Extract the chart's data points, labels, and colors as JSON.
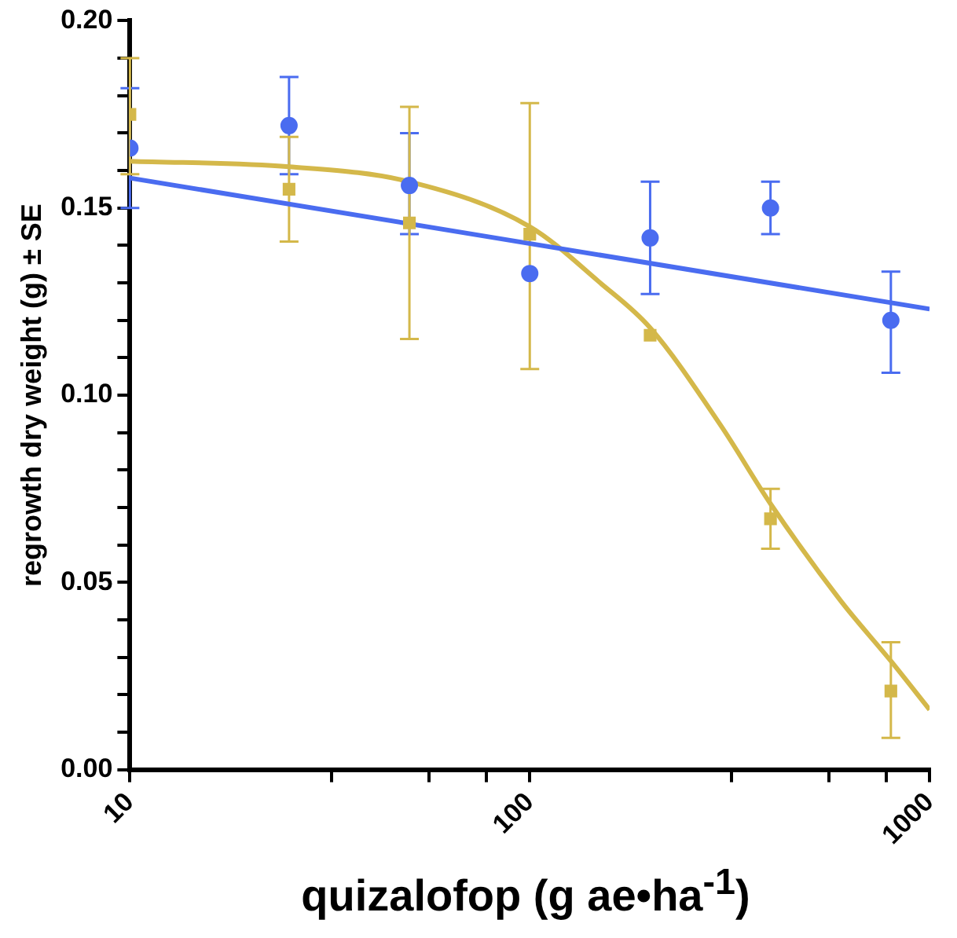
{
  "chart_data": {
    "type": "scatter",
    "xlabel": "quizalofop (g ae•ha$^{-1}$)",
    "ylabel": "regrowth dry weight (g) ± SE",
    "log": "x",
    "grid": false,
    "legend": false,
    "xlim": [
      10,
      1000
    ],
    "ylim": [
      0,
      0.2
    ],
    "xticks": [
      10,
      {
        "value": 32,
        "label": null
      },
      {
        "value": 56,
        "label": null
      },
      {
        "value": 78,
        "label": null
      },
      100,
      {
        "value": 320,
        "label": null
      },
      {
        "value": 560,
        "label": null
      },
      {
        "value": 780,
        "label": null
      },
      1000
    ],
    "yticks": [
      {
        "value": 0,
        "label": "0.00"
      },
      {
        "value": 0.01,
        "label": null
      },
      {
        "value": 0.02,
        "label": null
      },
      {
        "value": 0.03,
        "label": null
      },
      {
        "value": 0.04,
        "label": null
      },
      {
        "value": 0.05,
        "label": "0.05"
      },
      {
        "value": 0.06,
        "label": null
      },
      {
        "value": 0.07,
        "label": null
      },
      {
        "value": 0.08,
        "label": null
      },
      {
        "value": 0.09,
        "label": null
      },
      {
        "value": 0.1,
        "label": "0.10"
      },
      {
        "value": 0.11,
        "label": null
      },
      {
        "value": 0.12,
        "label": null
      },
      {
        "value": 0.13,
        "label": null
      },
      {
        "value": 0.14,
        "label": null
      },
      {
        "value": 0.15,
        "label": "0.15"
      },
      {
        "value": 0.16,
        "label": null
      },
      {
        "value": 0.17,
        "label": null
      },
      {
        "value": 0.18,
        "label": null
      },
      {
        "value": 0.19,
        "label": null
      },
      {
        "value": 0.2,
        "label": "0.20"
      }
    ],
    "series": [
      {
        "type": "scatter",
        "marker": "circle",
        "color": "#4a6cf0",
        "x": [
          10,
          25,
          50,
          100,
          200,
          400,
          800
        ],
        "values": [
          0.166,
          0.172,
          0.156,
          0.1325,
          0.142,
          0.15,
          0.12
        ],
        "errors": [
          [
            0.15,
            0.182
          ],
          [
            0.159,
            0.185
          ],
          [
            0.143,
            0.17
          ],
          null,
          [
            0.127,
            0.157
          ],
          [
            0.143,
            0.157
          ],
          [
            0.106,
            0.133
          ]
        ]
      },
      {
        "type": "scatter",
        "marker": "square",
        "color": "#d4b84a",
        "x": [
          10,
          25,
          50,
          100,
          200,
          400,
          800
        ],
        "values": [
          0.175,
          0.155,
          0.146,
          0.143,
          0.116,
          0.067,
          0.021
        ],
        "errors": [
          [
            0.159,
            0.19
          ],
          [
            0.141,
            0.169
          ],
          [
            0.115,
            0.177
          ],
          [
            0.107,
            0.178
          ],
          null,
          [
            0.059,
            0.075
          ],
          [
            0.0085,
            0.034
          ]
        ]
      },
      {
        "type": "line",
        "marker": "none",
        "color": "#4a6cf0",
        "x": [
          10,
          1000
        ],
        "values": [
          0.158,
          0.123
        ]
      },
      {
        "type": "line",
        "marker": "none",
        "color": "#d4b84a",
        "x": [
          10,
          25,
          50,
          100,
          150,
          200,
          300,
          400,
          600,
          800,
          1000
        ],
        "values": [
          0.1625,
          0.161,
          0.157,
          0.145,
          0.13,
          0.118,
          0.092,
          0.071,
          0.045,
          0.029,
          0.016
        ]
      }
    ]
  }
}
